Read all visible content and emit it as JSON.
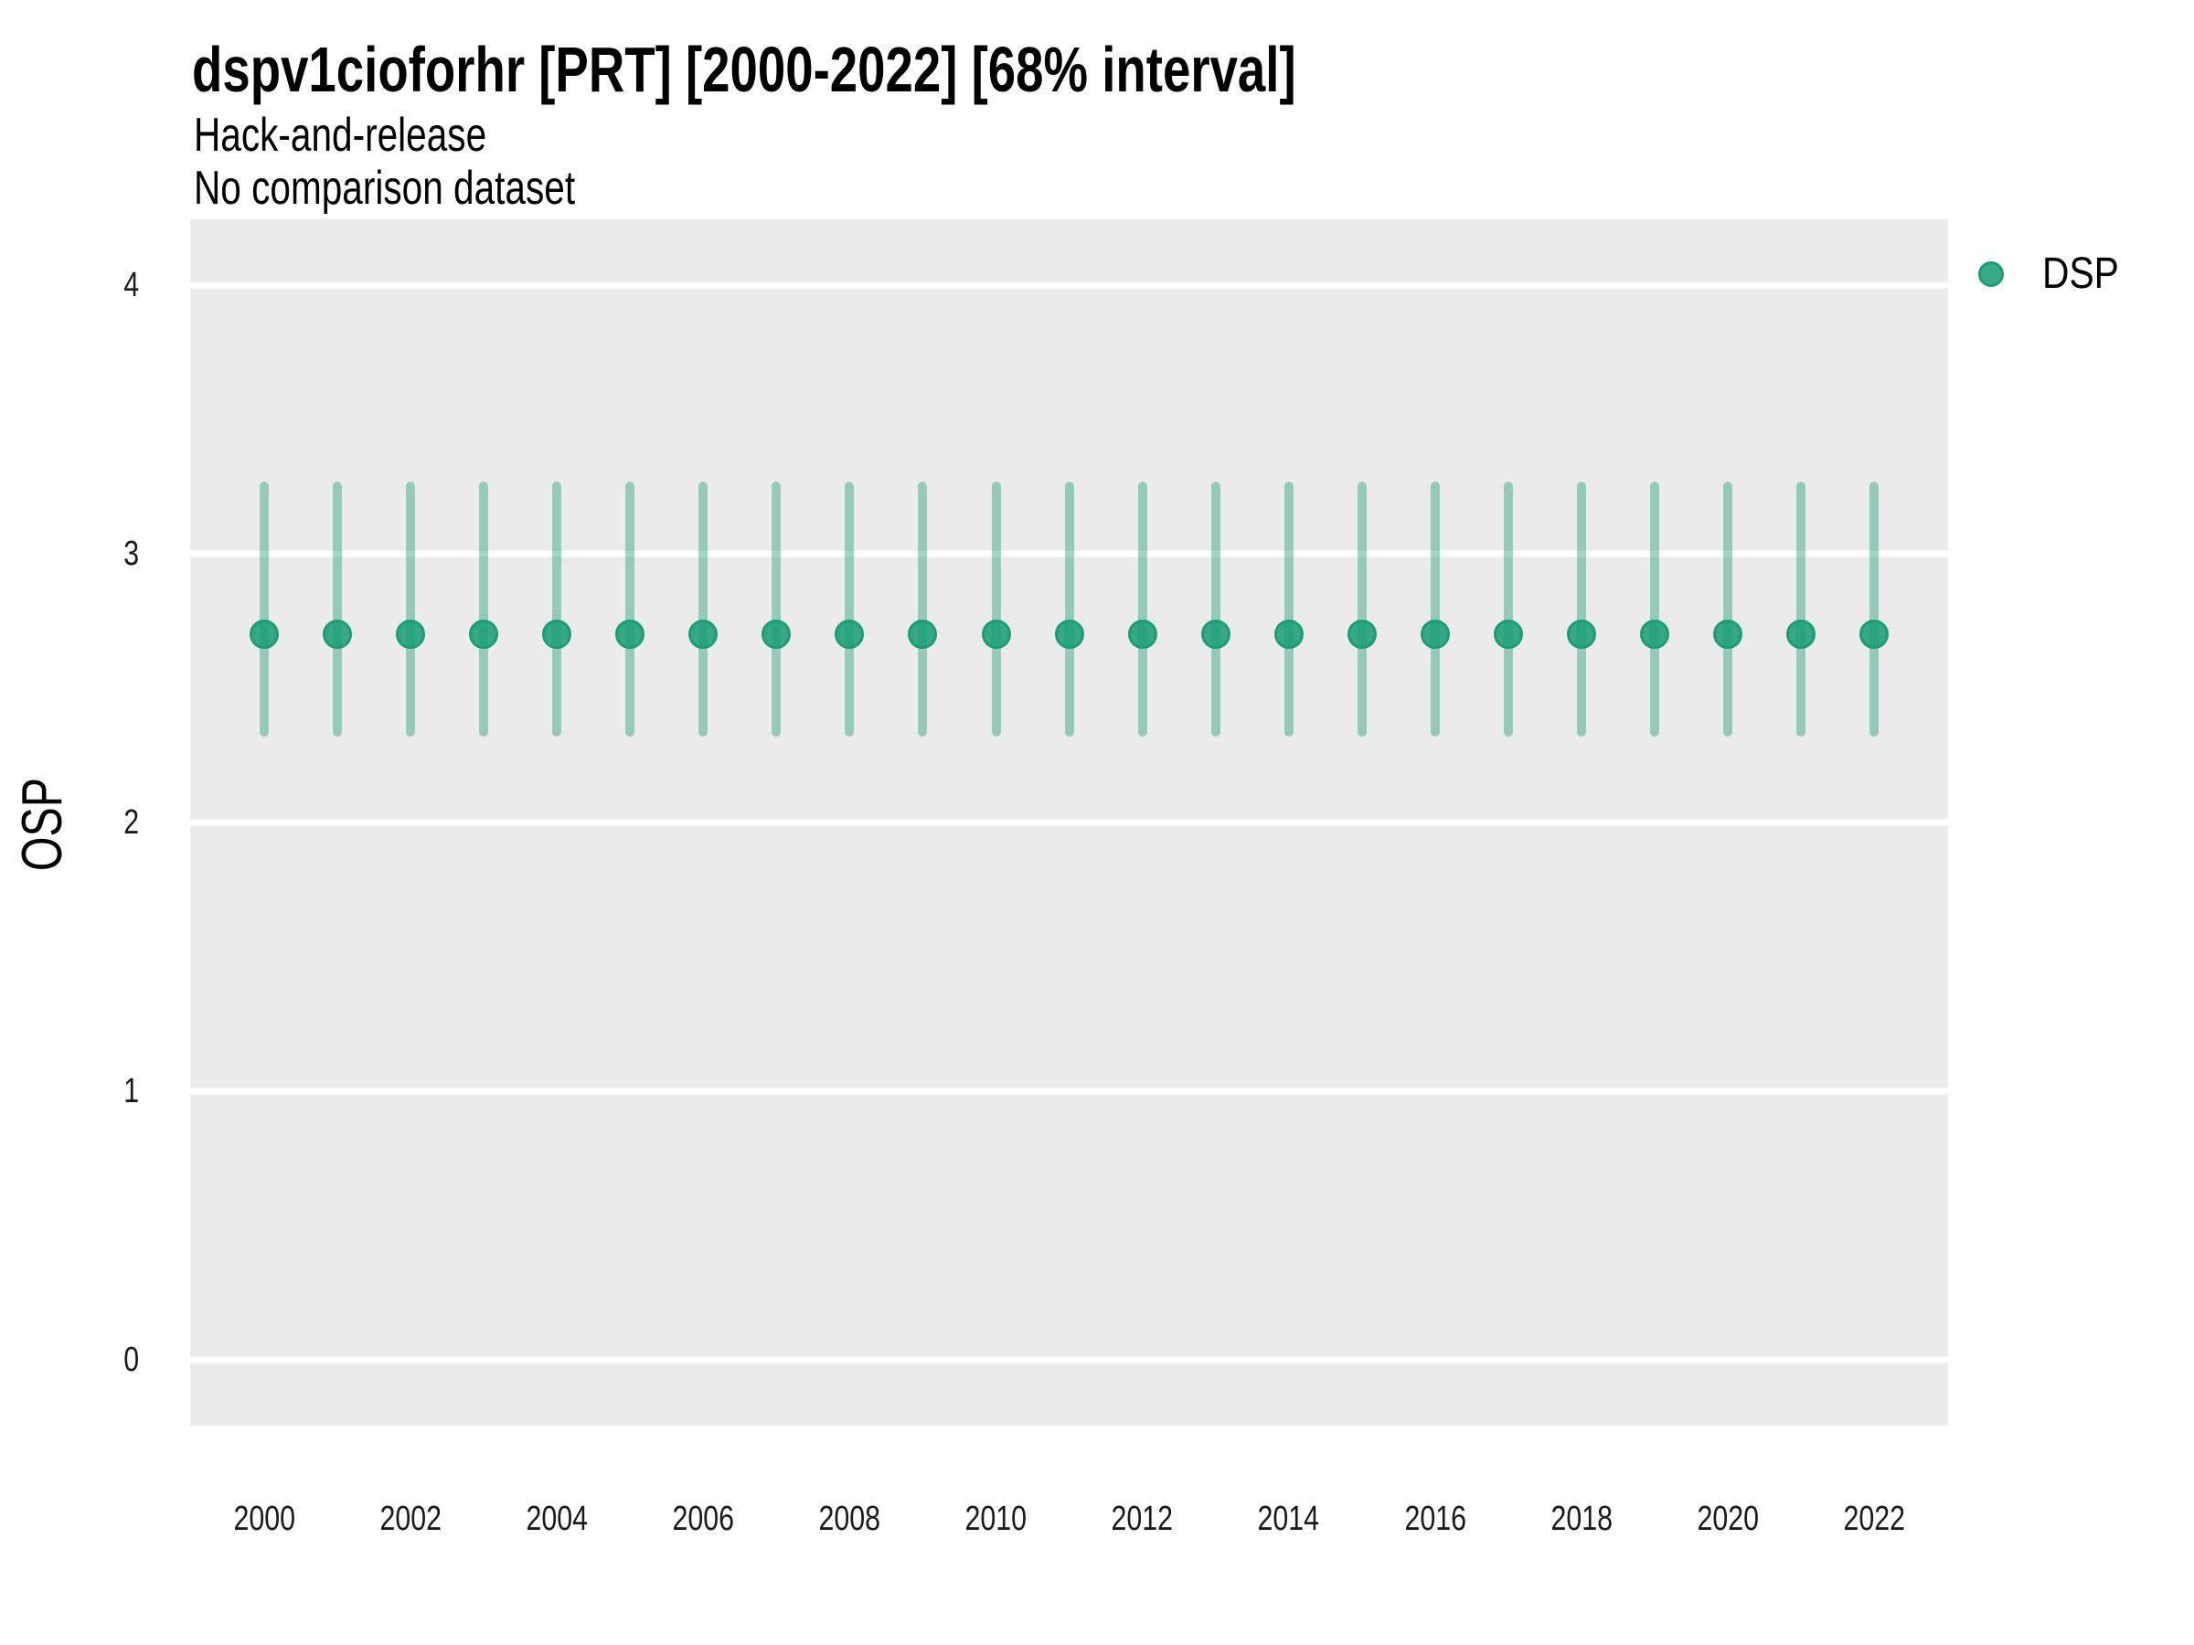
{
  "header": {
    "title": "dspv1cioforhr [PRT] [2000-2022] [68% interval]",
    "subtitle1": "Hack-and-release",
    "subtitle2": "No comparison dataset"
  },
  "legend": {
    "position": "right-top",
    "items": [
      {
        "label": "DSP",
        "color": "#1B9E77"
      }
    ]
  },
  "colors": {
    "accent": "#1B9E77",
    "point_fill_effective": "#2EA884",
    "interval_line_effective": "#95CDBB",
    "panel_background": "#EBEBEB",
    "gridline": "#FFFFFF",
    "text": "#000000",
    "tick_text": "#1A1A1A"
  },
  "chart_data": {
    "type": "scatter",
    "subtype": "pointrange-errorbar",
    "title": "dspv1cioforhr [PRT] [2000-2022] [68% interval]",
    "subtitle": "Hack-and-release",
    "annotation": "No comparison dataset",
    "interval_level": "68%",
    "xlabel": "",
    "ylabel": "OSP",
    "x": [
      2000,
      2001,
      2002,
      2003,
      2004,
      2005,
      2006,
      2007,
      2008,
      2009,
      2010,
      2011,
      2012,
      2013,
      2014,
      2015,
      2016,
      2017,
      2018,
      2019,
      2020,
      2021,
      2022
    ],
    "series": [
      {
        "name": "DSP",
        "color": "#1B9E77",
        "mean": [
          2.7,
          2.7,
          2.7,
          2.7,
          2.7,
          2.7,
          2.7,
          2.7,
          2.7,
          2.7,
          2.7,
          2.7,
          2.7,
          2.7,
          2.7,
          2.7,
          2.7,
          2.7,
          2.7,
          2.7,
          2.7,
          2.7,
          2.7
        ],
        "lower": [
          2.32,
          2.32,
          2.32,
          2.32,
          2.32,
          2.32,
          2.32,
          2.32,
          2.32,
          2.32,
          2.32,
          2.32,
          2.32,
          2.32,
          2.32,
          2.32,
          2.32,
          2.32,
          2.32,
          2.32,
          2.32,
          2.32,
          2.32
        ],
        "upper": [
          3.27,
          3.27,
          3.27,
          3.27,
          3.27,
          3.27,
          3.27,
          3.27,
          3.27,
          3.27,
          3.27,
          3.27,
          3.27,
          3.27,
          3.27,
          3.27,
          3.27,
          3.27,
          3.27,
          3.27,
          3.27,
          3.27,
          3.27
        ]
      }
    ],
    "ylim": [
      -0.25,
      4.25
    ],
    "y_ticks": [
      0,
      1,
      2,
      3,
      4
    ],
    "x_ticks": [
      2000,
      2002,
      2004,
      2006,
      2008,
      2010,
      2012,
      2014,
      2016,
      2018,
      2020,
      2022
    ],
    "grid": "horizontal-major-only",
    "legend_position": "right-top"
  }
}
